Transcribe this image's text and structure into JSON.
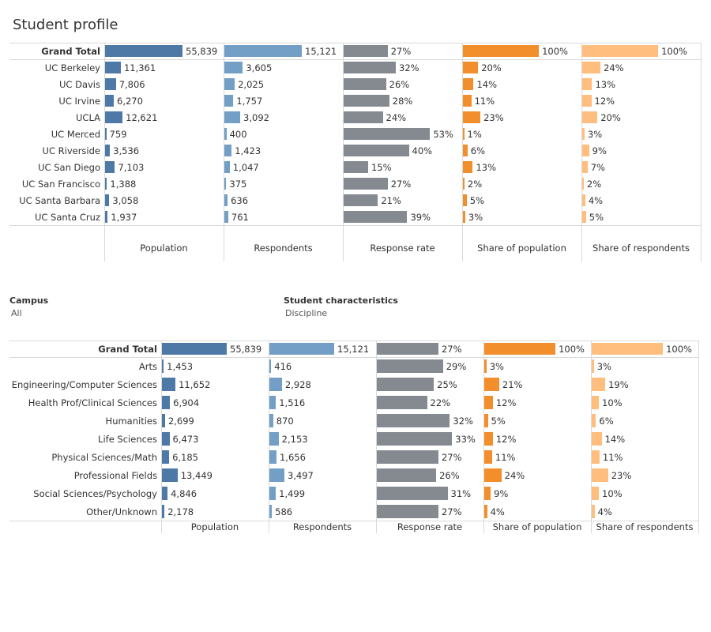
{
  "title": "Student profile",
  "colors": {
    "population": "#4e79a7",
    "respondents": "#739fc6",
    "response_rate": "#858a91",
    "share_population": "#f28e2b",
    "share_respondents": "#ffbe7d"
  },
  "filters": [
    {
      "label": "Campus",
      "value": "All"
    },
    {
      "label": "Student characteristics",
      "value": "Discipline"
    }
  ],
  "columns": [
    "Population",
    "Respondents",
    "Response rate",
    "Share of population",
    "Share of respondents"
  ],
  "chart_data": [
    {
      "type": "bar",
      "categories": [
        "Grand Total",
        "UC Berkeley",
        "UC Davis",
        "UC Irvine",
        "UCLA",
        "UC Merced",
        "UC Riverside",
        "UC San Diego",
        "UC San Francisco",
        "UC Santa Barbara",
        "UC Santa Cruz"
      ],
      "series": [
        {
          "name": "Population",
          "values": [
            55839,
            11361,
            7806,
            6270,
            12621,
            759,
            3536,
            7103,
            1388,
            3058,
            1937
          ],
          "labels": [
            "55,839",
            "11,361",
            "7,806",
            "6,270",
            "12,621",
            "759",
            "3,536",
            "7,103",
            "1,388",
            "3,058",
            "1,937"
          ]
        },
        {
          "name": "Respondents",
          "values": [
            15121,
            3605,
            2025,
            1757,
            3092,
            400,
            1423,
            1047,
            375,
            636,
            761
          ],
          "labels": [
            "15,121",
            "3,605",
            "2,025",
            "1,757",
            "3,092",
            "400",
            "1,423",
            "1,047",
            "375",
            "636",
            "761"
          ]
        },
        {
          "name": "Response rate",
          "values": [
            27,
            32,
            26,
            28,
            24,
            53,
            40,
            15,
            27,
            21,
            39
          ],
          "labels": [
            "27%",
            "32%",
            "26%",
            "28%",
            "24%",
            "53%",
            "40%",
            "15%",
            "27%",
            "21%",
            "39%"
          ]
        },
        {
          "name": "Share of population",
          "values": [
            100,
            20,
            14,
            11,
            23,
            1,
            6,
            13,
            2,
            5,
            3
          ],
          "labels": [
            "100%",
            "20%",
            "14%",
            "11%",
            "23%",
            "1%",
            "6%",
            "13%",
            "2%",
            "5%",
            "3%"
          ]
        },
        {
          "name": "Share of respondents",
          "values": [
            100,
            24,
            13,
            12,
            20,
            3,
            9,
            7,
            2,
            4,
            5
          ],
          "labels": [
            "100%",
            "24%",
            "13%",
            "12%",
            "20%",
            "3%",
            "9%",
            "7%",
            "2%",
            "4%",
            "5%"
          ]
        }
      ]
    },
    {
      "type": "bar",
      "categories": [
        "Grand Total",
        "Arts",
        "Engineering/Computer Sciences",
        "Health Prof/Clinical Sciences",
        "Humanities",
        "Life Sciences",
        "Physical Sciences/Math",
        "Professional Fields",
        "Social Sciences/Psychology",
        "Other/Unknown"
      ],
      "series": [
        {
          "name": "Population",
          "values": [
            55839,
            1453,
            11652,
            6904,
            2699,
            6473,
            6185,
            13449,
            4846,
            2178
          ],
          "labels": [
            "55,839",
            "1,453",
            "11,652",
            "6,904",
            "2,699",
            "6,473",
            "6,185",
            "13,449",
            "4,846",
            "2,178"
          ]
        },
        {
          "name": "Respondents",
          "values": [
            15121,
            416,
            2928,
            1516,
            870,
            2153,
            1656,
            3497,
            1499,
            586
          ],
          "labels": [
            "15,121",
            "416",
            "2,928",
            "1,516",
            "870",
            "2,153",
            "1,656",
            "3,497",
            "1,499",
            "586"
          ]
        },
        {
          "name": "Response rate",
          "values": [
            27,
            29,
            25,
            22,
            32,
            33,
            27,
            26,
            31,
            27
          ],
          "labels": [
            "27%",
            "29%",
            "25%",
            "22%",
            "32%",
            "33%",
            "27%",
            "26%",
            "31%",
            "27%"
          ]
        },
        {
          "name": "Share of population",
          "values": [
            100,
            3,
            21,
            12,
            5,
            12,
            11,
            24,
            9,
            4
          ],
          "labels": [
            "100%",
            "3%",
            "21%",
            "12%",
            "5%",
            "12%",
            "11%",
            "24%",
            "9%",
            "4%"
          ]
        },
        {
          "name": "Share of respondents",
          "values": [
            100,
            3,
            19,
            10,
            6,
            14,
            11,
            23,
            10,
            4
          ],
          "labels": [
            "100%",
            "3%",
            "19%",
            "10%",
            "6%",
            "14%",
            "11%",
            "23%",
            "10%",
            "4%"
          ]
        }
      ]
    }
  ]
}
